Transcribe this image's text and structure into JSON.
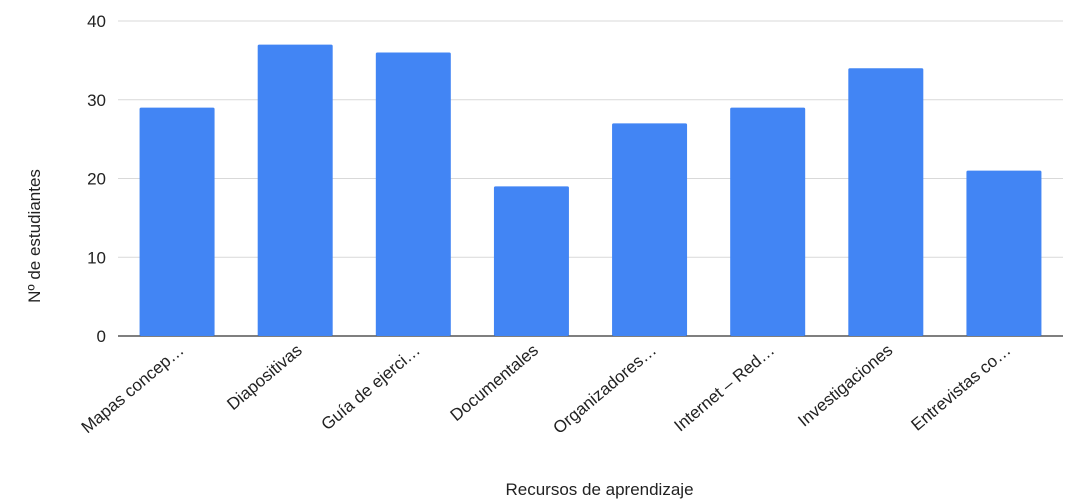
{
  "chart_data": {
    "type": "bar",
    "title": "",
    "xlabel": "Recursos de aprendizaje",
    "ylabel": "Nº de estudiantes",
    "categories": [
      "Mapas concep…",
      "Diapositivas",
      "Guía de ejerci…",
      "Documentales",
      "Organizadores…",
      "Internet – Red…",
      "Investigaciones",
      "Entrevistas co…"
    ],
    "values": [
      29,
      37,
      36,
      19,
      27,
      29,
      34,
      21
    ],
    "ylim": [
      0,
      40
    ],
    "yticks": [
      0,
      10,
      20,
      30,
      40
    ],
    "grid": true,
    "legend": "none",
    "colors": {
      "bar": "#4285f4"
    }
  }
}
